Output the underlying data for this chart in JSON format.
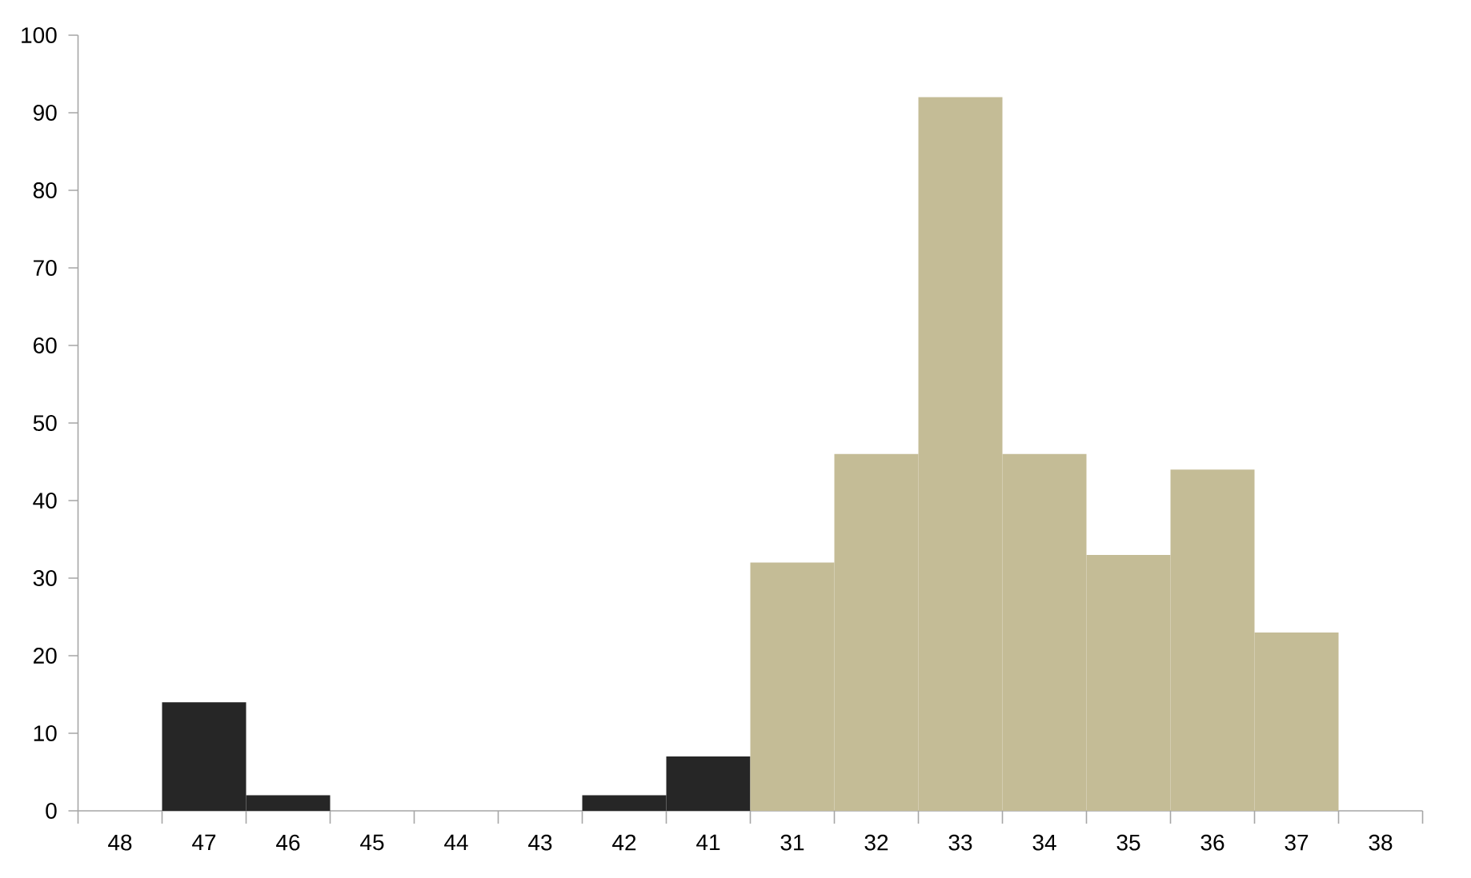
{
  "chart_data": {
    "type": "bar",
    "categories": [
      "48",
      "47",
      "46",
      "45",
      "44",
      "43",
      "42",
      "41",
      "31",
      "32",
      "33",
      "34",
      "35",
      "36",
      "37",
      "38"
    ],
    "values": [
      0,
      14,
      2,
      0,
      0,
      0,
      2,
      7,
      32,
      46,
      92,
      46,
      33,
      44,
      23,
      0
    ],
    "colors": [
      "#262626",
      "#262626",
      "#262626",
      "#262626",
      "#262626",
      "#262626",
      "#262626",
      "#262626",
      "#c4bc96",
      "#c4bc96",
      "#c4bc96",
      "#c4bc96",
      "#c4bc96",
      "#c4bc96",
      "#c4bc96",
      "#c4bc96"
    ],
    "ylim": [
      0,
      100
    ],
    "yticks": [
      0,
      10,
      20,
      30,
      40,
      50,
      60,
      70,
      80,
      90,
      100
    ],
    "grid": false
  }
}
